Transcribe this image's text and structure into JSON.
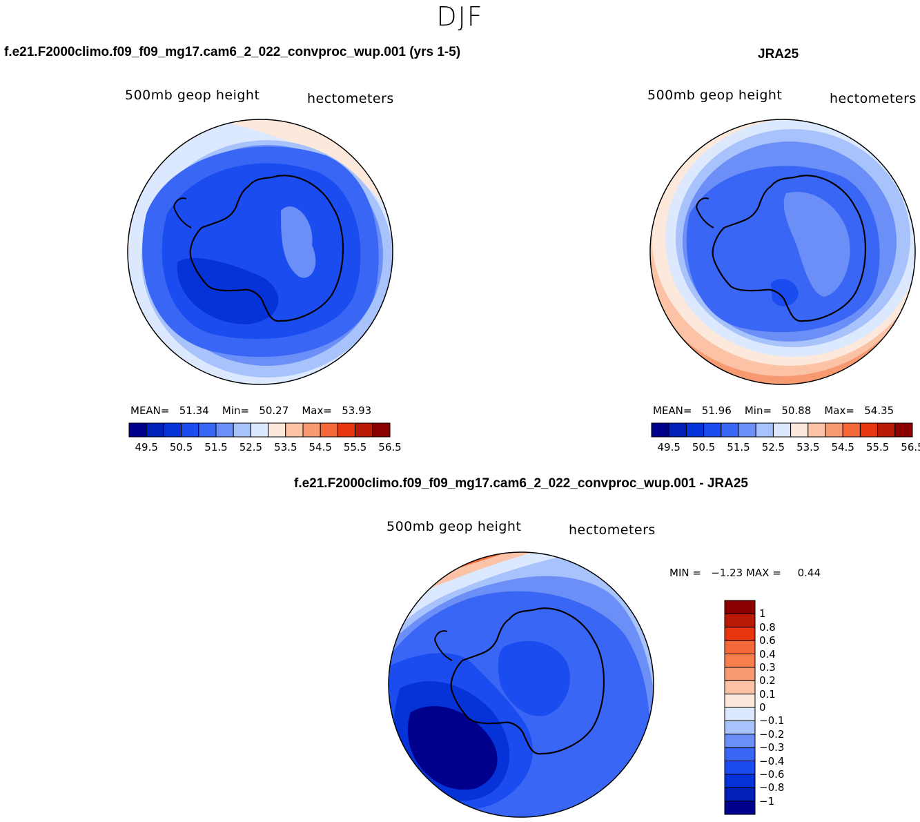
{
  "season": "DJF",
  "panels": {
    "model": {
      "case_title": "f.e21.F2000climo.f09_f09_mg17.cam6_2_022_convproc_wup.001 (yrs 1-5)",
      "variable": "500mb  geop  height",
      "units": "hectometers",
      "stats": {
        "mean_label": "MEAN=",
        "mean": "51.34",
        "min_label": "Min=",
        "min": "50.27",
        "max_label": "Max=",
        "max": "53.93"
      }
    },
    "obs": {
      "case_title": "JRA25",
      "variable": "500mb  geop  height",
      "units": "hectometers",
      "stats": {
        "mean_label": "MEAN=",
        "mean": "51.96",
        "min_label": "Min=",
        "min": "50.88",
        "max_label": "Max=",
        "max": "54.35"
      }
    },
    "diff": {
      "case_title": "f.e21.F2000climo.f09_f09_mg17.cam6_2_022_convproc_wup.001 - JRA25",
      "variable": "500mb  geop  height",
      "units": "hectometers",
      "minmax_text": "MIN =   −1.23 MAX =     0.44"
    }
  },
  "colorbar_main": {
    "colors": [
      "#00008c",
      "#0020b8",
      "#0533d8",
      "#1a4cf0",
      "#3a66f5",
      "#6b8ff7",
      "#a8c2fb",
      "#dbe8fd",
      "#fde8dc",
      "#fbc2a6",
      "#f79a72",
      "#f5683a",
      "#e8350f",
      "#b81a05",
      "#8a0000"
    ],
    "tick_labels": [
      "49.5",
      "50.5",
      "51.5",
      "52.5",
      "53.5",
      "54.5",
      "55.5",
      "56.5"
    ]
  },
  "colorbar_diff": {
    "colors_top_to_bottom": [
      "#8a0000",
      "#b81a05",
      "#e8350f",
      "#f5683a",
      "#f77f4c",
      "#f79a72",
      "#fbc2a6",
      "#fde8dc",
      "#dbe8fd",
      "#a8c2fb",
      "#6b8ff7",
      "#3a66f5",
      "#1a4cf0",
      "#0533d8",
      "#0020b8",
      "#00008c"
    ],
    "tick_labels": [
      "1",
      "0.8",
      "0.6",
      "0.4",
      "0.3",
      "0.2",
      "0.1",
      "0",
      "−0.1",
      "−0.2",
      "−0.3",
      "−0.4",
      "−0.6",
      "−0.8",
      "−1"
    ]
  },
  "field_colors": {
    "c49": "#0020b8",
    "c50": "#0533d8",
    "c505": "#1a4cf0",
    "c51": "#3a66f5",
    "c515": "#6b8ff7",
    "c52": "#a8c2fb",
    "c525": "#dbe8fd",
    "c53": "#fde8dc",
    "c535": "#fbc2a6",
    "c54": "#f79a72",
    "c545": "#f5683a"
  }
}
